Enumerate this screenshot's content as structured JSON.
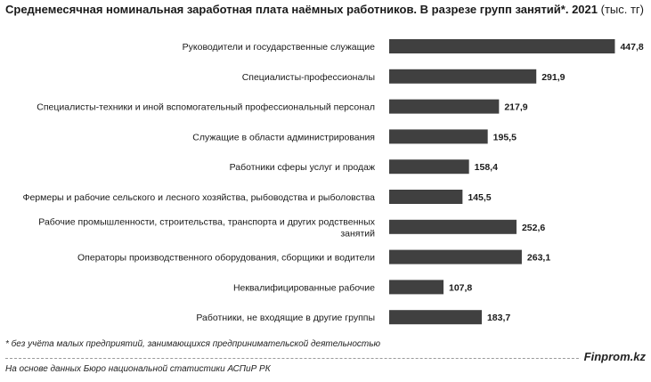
{
  "header": {
    "title": "Среднемесячная номинальная заработная плата наёмных работников. В разрезе групп занятий*. 2021",
    "unit": "(тыс. тг)"
  },
  "chart_data": {
    "type": "bar",
    "orientation": "horizontal",
    "title": "Среднемесячная номинальная заработная плата наёмных работников. В разрезе групп занятий*. 2021 (тыс. тг)",
    "xlabel": "",
    "ylabel": "",
    "xlim": [
      0,
      460
    ],
    "grid": false,
    "bar_color": "#404040",
    "categories": [
      [
        "Руководители и государственные служащие"
      ],
      [
        "Специалисты-профессионалы"
      ],
      [
        "Специалисты-техники и иной вспомогательный профессиональный персонал"
      ],
      [
        "Служащие в области администрирования"
      ],
      [
        "Работники сферы услуг и продаж"
      ],
      [
        "Фермеры и рабочие сельского и лесного хозяйства, рыбоводства и рыболовства"
      ],
      [
        "Рабочие промышленности, строительства, транспорта и других родственных",
        "занятий"
      ],
      [
        "Операторы производственного оборудования, сборщики и водители"
      ],
      [
        "Неквалифицированные рабочие"
      ],
      [
        "Работники, не входящие в другие группы"
      ]
    ],
    "values": [
      447.8,
      291.9,
      217.9,
      195.5,
      158.4,
      145.5,
      252.6,
      263.1,
      107.8,
      183.7
    ],
    "value_labels": [
      "447,8",
      "291,9",
      "217,9",
      "195,5",
      "158,4",
      "145,5",
      "252,6",
      "263,1",
      "107,8",
      "183,7"
    ]
  },
  "footer": {
    "footnote": "* без учёта малых предприятий, занимающихся предпринимательской деятельностью",
    "source": "На основе данных Бюро национальной статистики АСПиР РК",
    "brand": "Finprom.kz"
  }
}
